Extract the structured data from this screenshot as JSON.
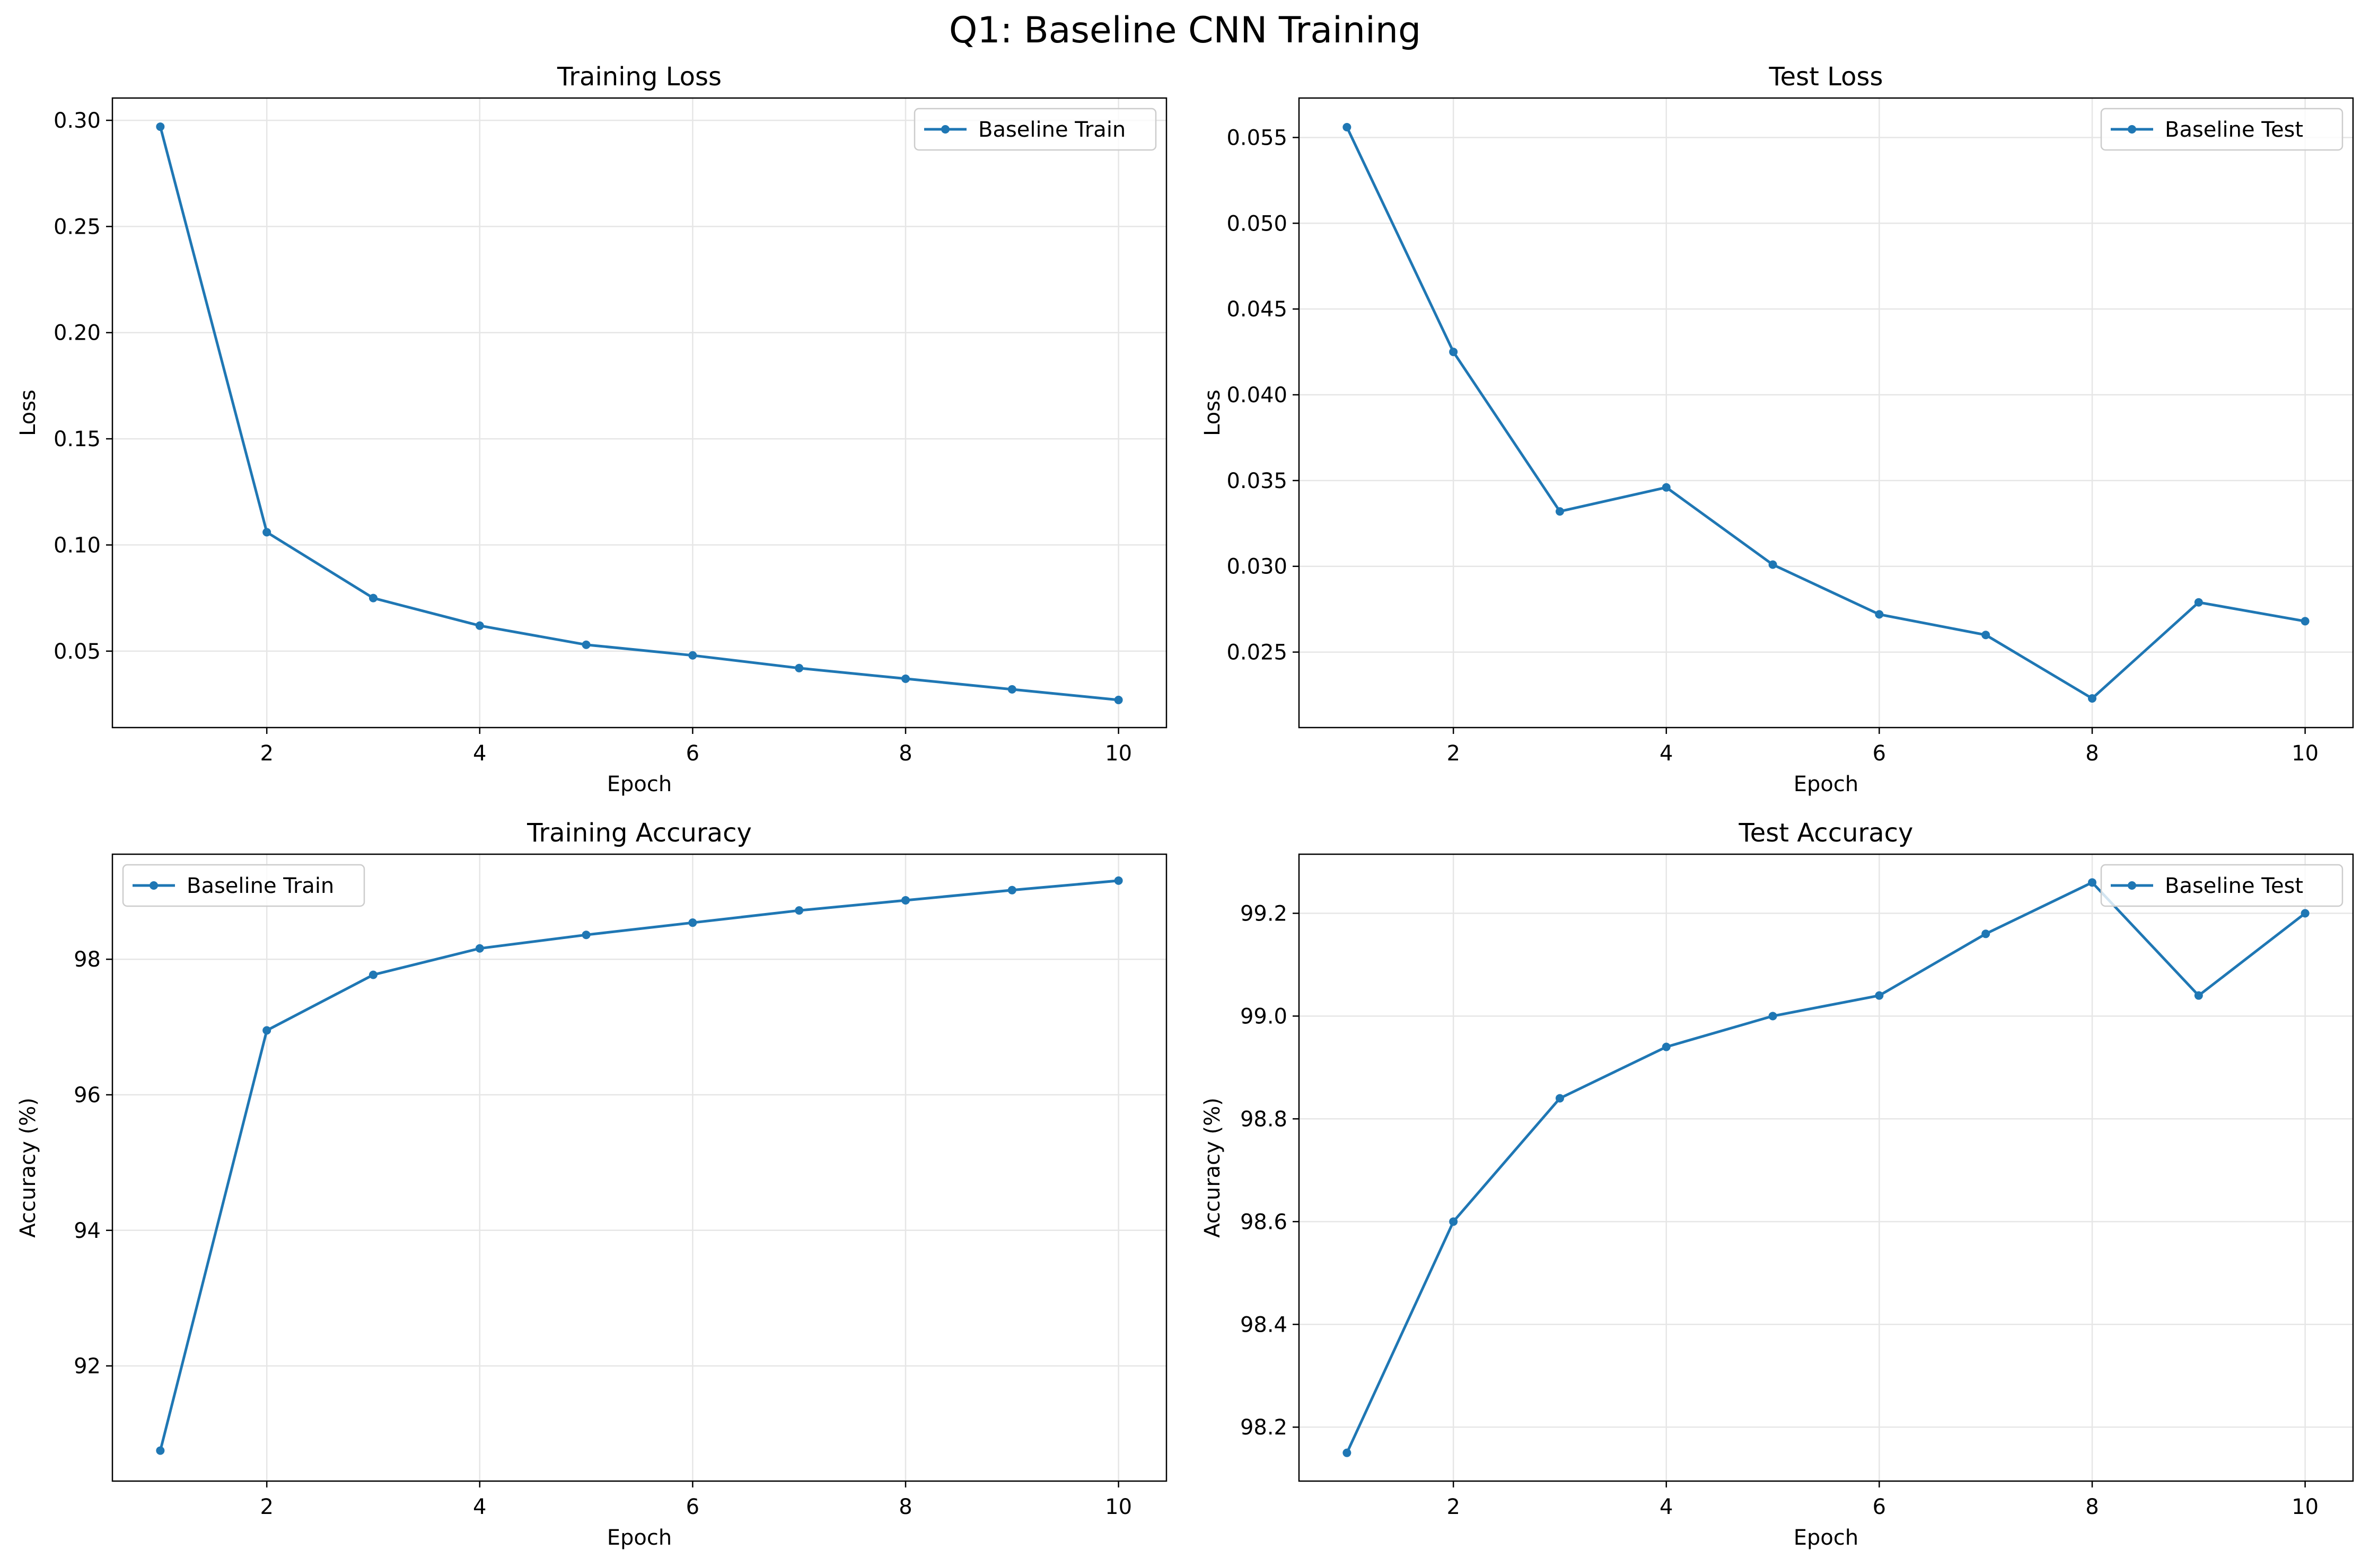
{
  "figure": {
    "title": "Q1: Baseline CNN Training"
  },
  "colors": {
    "line": "#1f77b4",
    "grid": "#e6e6e6",
    "axis": "#000000"
  },
  "chart_data": [
    {
      "type": "line",
      "title": "Training Loss",
      "xlabel": "Epoch",
      "ylabel": "Loss",
      "xlim": [
        0.55,
        10.45
      ],
      "ylim": [
        0.014,
        0.3105
      ],
      "xticks": [
        2,
        4,
        6,
        8,
        10
      ],
      "xtick_labels": [
        "2",
        "4",
        "6",
        "8",
        "10"
      ],
      "yticks": [
        0.05,
        0.1,
        0.15,
        0.2,
        0.25,
        0.3
      ],
      "ytick_labels": [
        "0.05",
        "0.10",
        "0.15",
        "0.20",
        "0.25",
        "0.30"
      ],
      "grid": true,
      "legend": "upper-right",
      "x": [
        1,
        2,
        3,
        4,
        5,
        6,
        7,
        8,
        9,
        10
      ],
      "series": [
        {
          "name": "Baseline Train",
          "values": [
            0.297,
            0.106,
            0.075,
            0.062,
            0.053,
            0.048,
            0.042,
            0.037,
            0.032,
            0.027
          ]
        }
      ]
    },
    {
      "type": "line",
      "title": "Test Loss",
      "xlabel": "Epoch",
      "ylabel": "Loss",
      "xlim": [
        0.55,
        10.45
      ],
      "ylim": [
        0.0206,
        0.0573
      ],
      "xticks": [
        2,
        4,
        6,
        8,
        10
      ],
      "xtick_labels": [
        "2",
        "4",
        "6",
        "8",
        "10"
      ],
      "yticks": [
        0.025,
        0.03,
        0.035,
        0.04,
        0.045,
        0.05,
        0.055
      ],
      "ytick_labels": [
        "0.025",
        "0.030",
        "0.035",
        "0.040",
        "0.045",
        "0.050",
        "0.055"
      ],
      "grid": true,
      "legend": "upper-right",
      "x": [
        1,
        2,
        3,
        4,
        5,
        6,
        7,
        8,
        9,
        10
      ],
      "series": [
        {
          "name": "Baseline Test",
          "values": [
            0.0556,
            0.0425,
            0.0332,
            0.0346,
            0.0301,
            0.0272,
            0.026,
            0.0223,
            0.0279,
            0.0268
          ]
        }
      ]
    },
    {
      "type": "line",
      "title": "Training Accuracy",
      "xlabel": "Epoch",
      "ylabel": "Accuracy (%)",
      "xlim": [
        0.55,
        10.45
      ],
      "ylim": [
        90.3,
        99.55
      ],
      "xticks": [
        2,
        4,
        6,
        8,
        10
      ],
      "xtick_labels": [
        "2",
        "4",
        "6",
        "8",
        "10"
      ],
      "yticks": [
        92,
        94,
        96,
        98
      ],
      "ytick_labels": [
        "92",
        "94",
        "96",
        "98"
      ],
      "grid": true,
      "legend": "upper-left",
      "x": [
        1,
        2,
        3,
        4,
        5,
        6,
        7,
        8,
        9,
        10
      ],
      "series": [
        {
          "name": "Baseline Train",
          "values": [
            90.75,
            96.95,
            97.77,
            98.16,
            98.36,
            98.54,
            98.72,
            98.87,
            99.02,
            99.16
          ]
        }
      ]
    },
    {
      "type": "line",
      "title": "Test Accuracy",
      "xlabel": "Epoch",
      "ylabel": "Accuracy (%)",
      "xlim": [
        0.55,
        10.45
      ],
      "ylim": [
        98.095,
        99.315
      ],
      "xticks": [
        2,
        4,
        6,
        8,
        10
      ],
      "xtick_labels": [
        "2",
        "4",
        "6",
        "8",
        "10"
      ],
      "yticks": [
        98.2,
        98.4,
        98.6,
        98.8,
        99.0,
        99.2
      ],
      "ytick_labels": [
        "98.2",
        "98.4",
        "98.6",
        "98.8",
        "99.0",
        "99.2"
      ],
      "grid": true,
      "legend": "upper-right",
      "x": [
        1,
        2,
        3,
        4,
        5,
        6,
        7,
        8,
        9,
        10
      ],
      "series": [
        {
          "name": "Baseline Test",
          "values": [
            98.15,
            98.6,
            98.84,
            98.94,
            99.0,
            99.04,
            99.16,
            99.26,
            99.04,
            99.2
          ]
        }
      ]
    }
  ]
}
